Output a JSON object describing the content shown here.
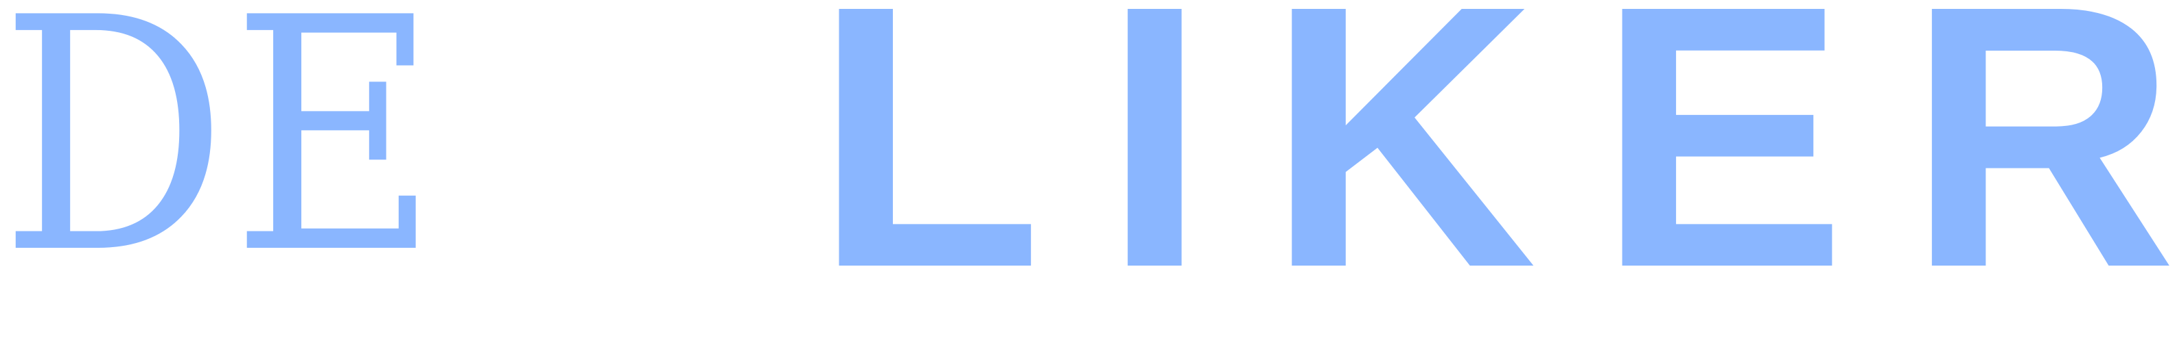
{
  "logo": {
    "word_one": "DE",
    "word_two_letters": [
      "L",
      "I",
      "K",
      "E",
      "R"
    ]
  },
  "colors": {
    "logo": "#8AB6FF"
  }
}
